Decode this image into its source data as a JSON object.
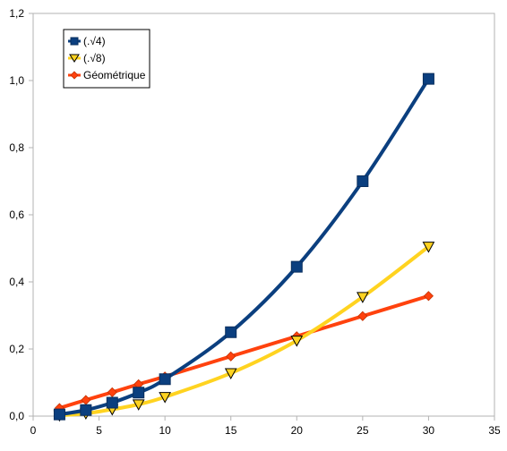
{
  "chart_data": {
    "type": "line",
    "title": "",
    "xlabel": "",
    "ylabel": "",
    "xlim": [
      0,
      35
    ],
    "ylim": [
      0,
      1.2
    ],
    "x_ticks": [
      {
        "value": 0,
        "label": "0"
      },
      {
        "value": 5,
        "label": "5"
      },
      {
        "value": 10,
        "label": "10"
      },
      {
        "value": 15,
        "label": "15"
      },
      {
        "value": 20,
        "label": "20"
      },
      {
        "value": 25,
        "label": "25"
      },
      {
        "value": 30,
        "label": "30"
      },
      {
        "value": 35,
        "label": "35"
      }
    ],
    "y_ticks": [
      {
        "value": 0,
        "label": "0,0"
      },
      {
        "value": 0.2,
        "label": "0,2"
      },
      {
        "value": 0.4,
        "label": "0,4"
      },
      {
        "value": 0.6,
        "label": "0,6"
      },
      {
        "value": 0.8,
        "label": "0,8"
      },
      {
        "value": 1.0,
        "label": "1,0"
      },
      {
        "value": 1.2,
        "label": "1,2"
      }
    ],
    "grid": {
      "vertical": false,
      "horizontal": false
    },
    "legend_position": "top-left",
    "series": [
      {
        "name": "(.√4)",
        "color": "#0b3f7f",
        "marker": "square",
        "x": [
          2,
          4,
          6,
          8,
          10,
          15,
          20,
          25,
          30
        ],
        "y": [
          0.005,
          0.018,
          0.04,
          0.07,
          0.11,
          0.25,
          0.445,
          0.7,
          1.005
        ]
      },
      {
        "name": "(.√8)",
        "color": "#ffd320",
        "marker": "triangle-down",
        "x": [
          2,
          4,
          6,
          8,
          10,
          15,
          20,
          25,
          30
        ],
        "y": [
          0.002,
          0.008,
          0.02,
          0.035,
          0.057,
          0.128,
          0.225,
          0.355,
          0.505
        ]
      },
      {
        "name": "Géométrique",
        "color": "#ff420e",
        "marker": "diamond",
        "x": [
          2,
          4,
          6,
          8,
          10,
          15,
          20,
          25,
          30
        ],
        "y": [
          0.024,
          0.048,
          0.071,
          0.095,
          0.118,
          0.178,
          0.238,
          0.298,
          0.358
        ]
      }
    ]
  }
}
